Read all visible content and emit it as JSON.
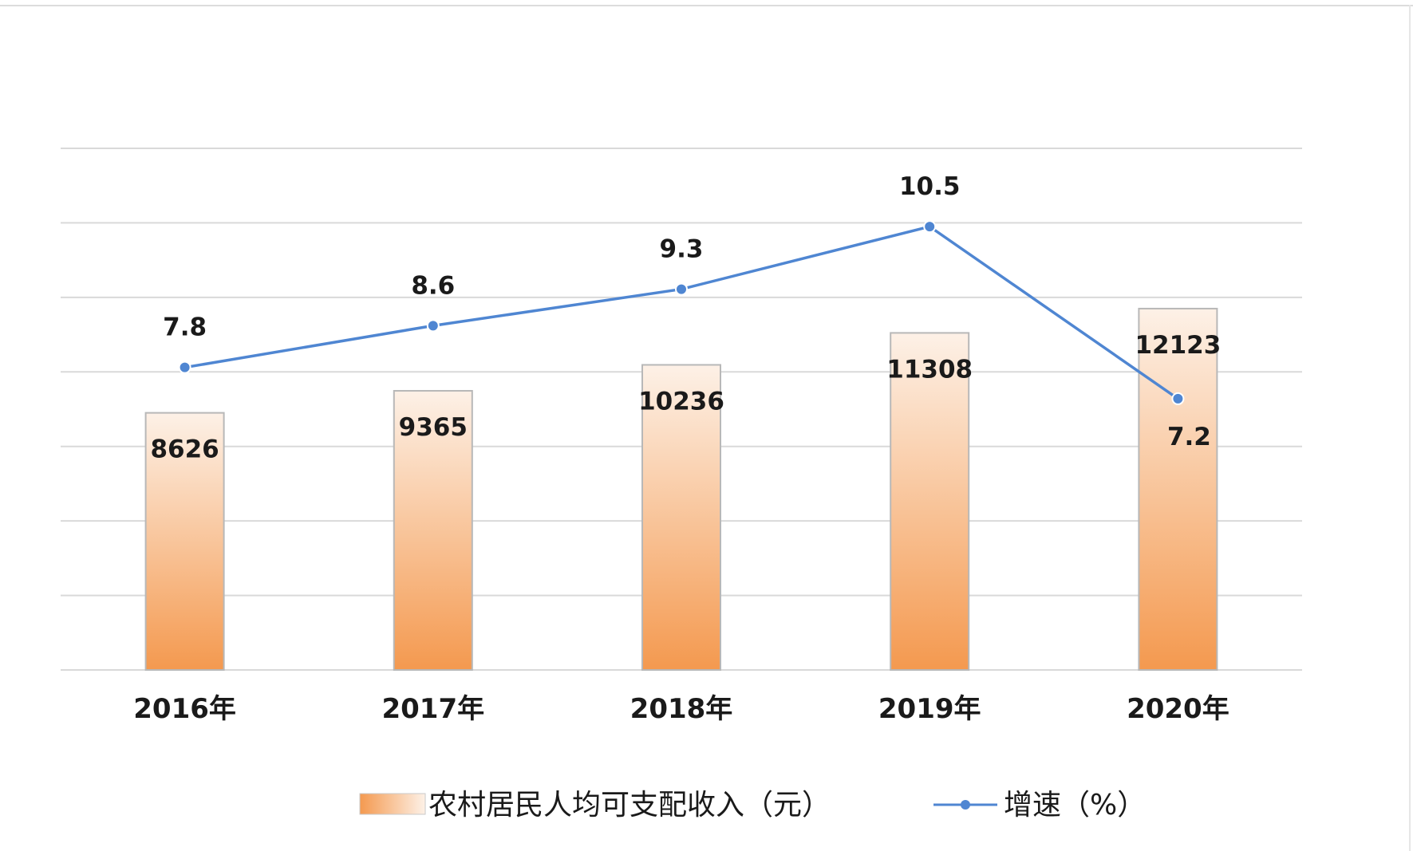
{
  "chart_data": {
    "type": "bar",
    "categories": [
      "2016年",
      "2017年",
      "2018年",
      "2019年",
      "2020年"
    ],
    "series": [
      {
        "name": "农村居民人均可支配收入（元）",
        "type": "bar",
        "axis": "left",
        "values": [
          8626,
          9365,
          10236,
          11308,
          12123
        ],
        "color": "#f4994f"
      },
      {
        "name": "增速（%）",
        "type": "line",
        "axis": "right",
        "values": [
          7.8,
          8.6,
          9.3,
          10.5,
          7.2
        ],
        "color": "#4f86d2"
      }
    ],
    "left_axis": {
      "range": [
        0,
        17500
      ],
      "gridlines": 8,
      "labels_shown": false
    },
    "right_axis": {
      "range": [
        2,
        12
      ],
      "labels_shown": false
    },
    "grid": true,
    "legend": {
      "position": "bottom-center"
    }
  }
}
